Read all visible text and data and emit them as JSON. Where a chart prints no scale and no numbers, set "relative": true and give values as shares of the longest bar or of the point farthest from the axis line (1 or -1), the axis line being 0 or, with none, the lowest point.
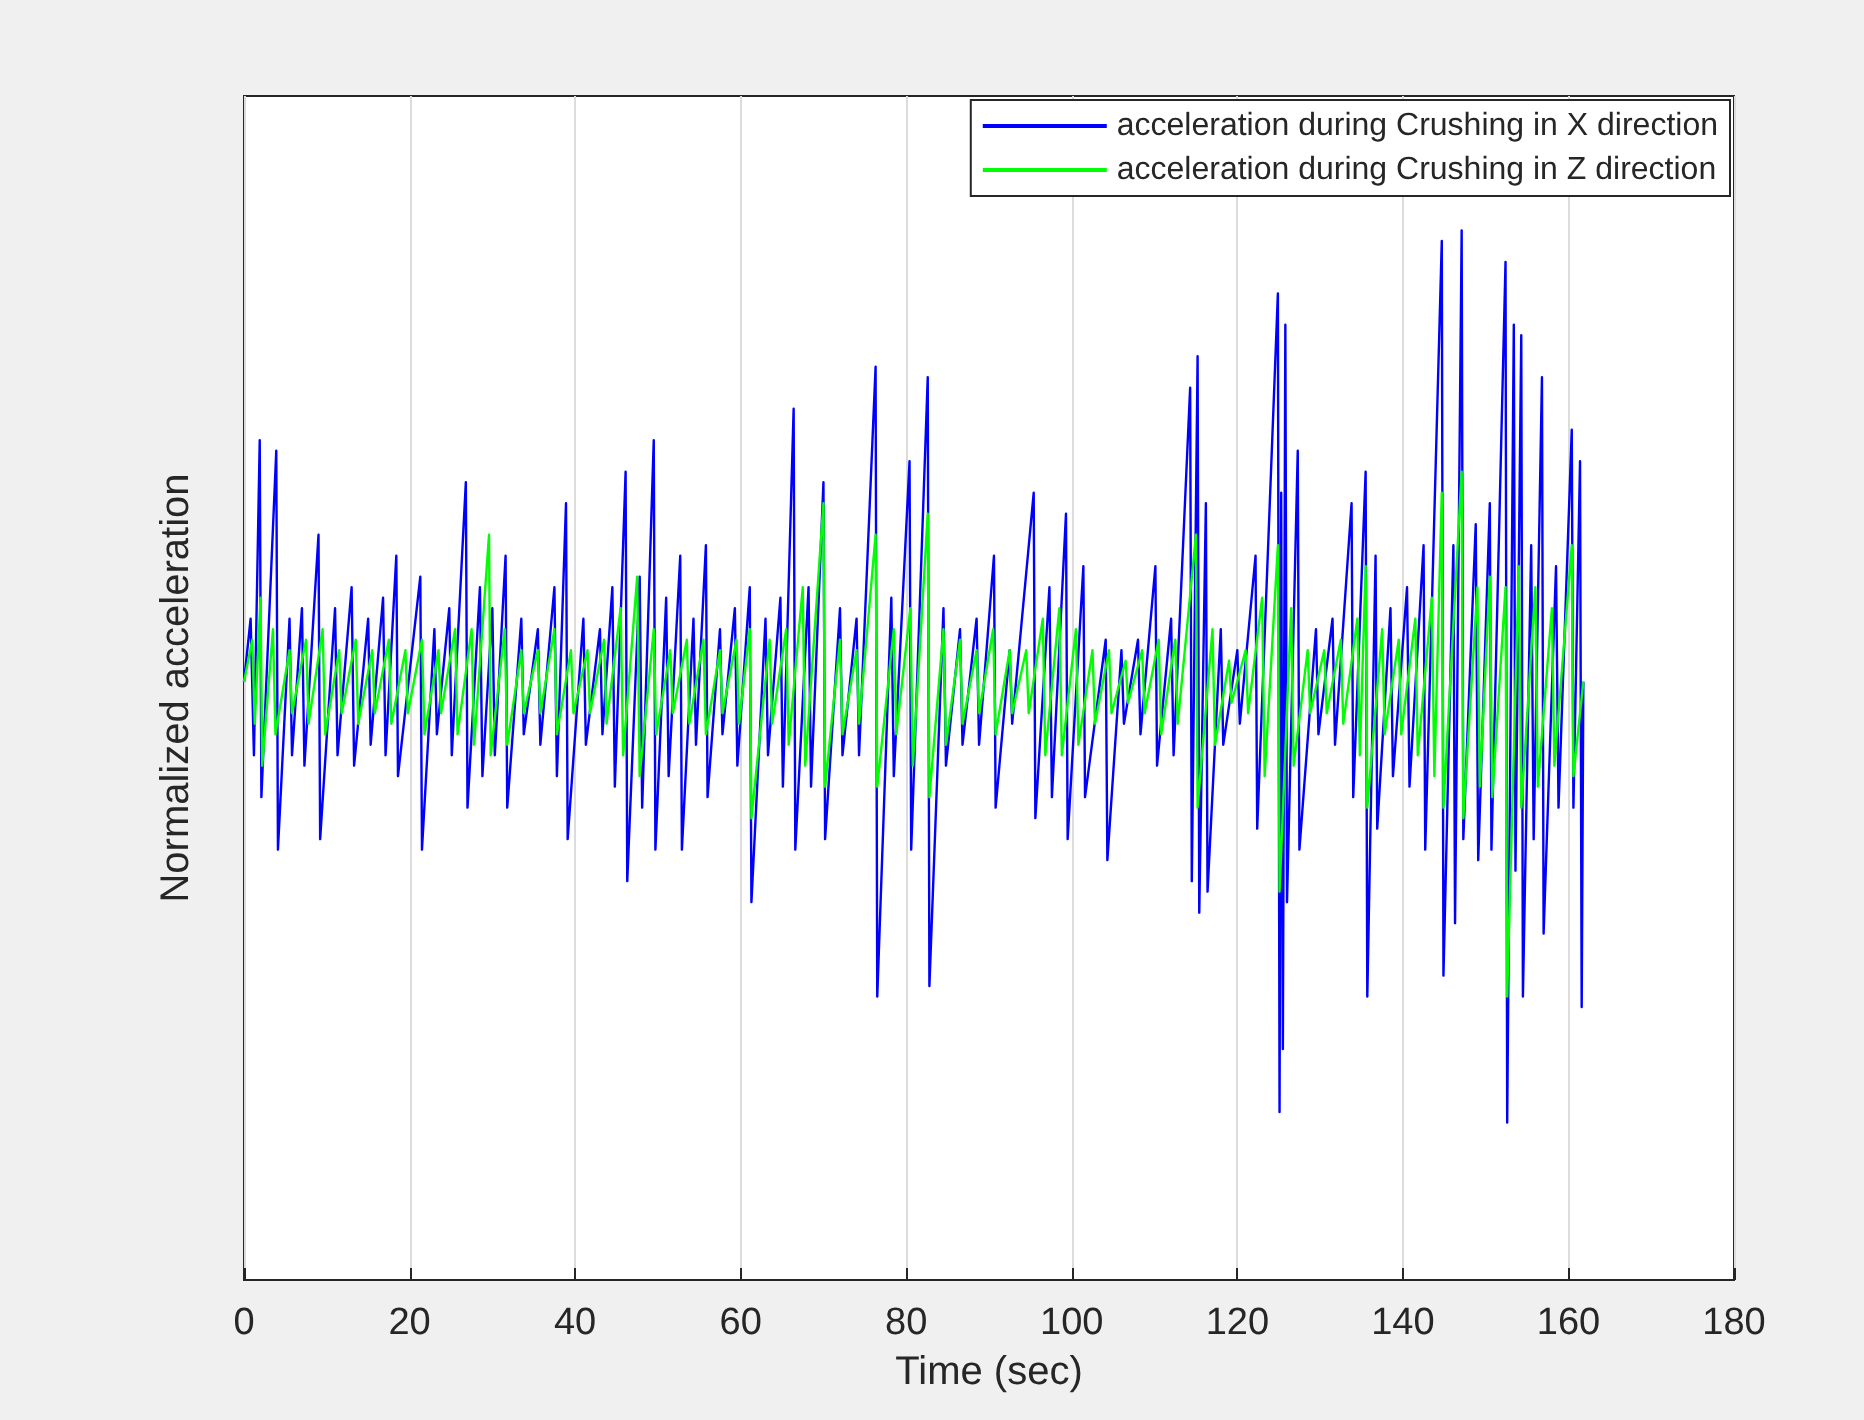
{
  "chart_data": {
    "type": "line",
    "xlabel": "Time (sec)",
    "ylabel": "Normalized acceleration",
    "relative": true,
    "xlim": [
      0,
      180
    ],
    "xticks": [
      0,
      20,
      40,
      60,
      80,
      100,
      120,
      140,
      160,
      180
    ],
    "grid": "x",
    "legend": "top right",
    "series": [
      {
        "name": "acceleration during Crushing in X direction",
        "color": "#0000ff",
        "x": [
          0,
          0.8,
          1.2,
          1.9,
          2.1,
          3.9,
          4.1,
          5.5,
          5.8,
          7,
          7.3,
          9,
          9.2,
          11,
          11.3,
          13,
          13.3,
          15,
          15.3,
          16.8,
          17.1,
          18.4,
          18.6,
          21.3,
          21.5,
          23,
          23.3,
          24.8,
          25.1,
          26.8,
          27,
          28.5,
          28.8,
          30,
          30.3,
          31.6,
          31.8,
          33.5,
          33.8,
          35.5,
          35.8,
          37.5,
          37.8,
          38.9,
          39.1,
          41,
          41.3,
          43,
          43.3,
          44.5,
          44.8,
          46.1,
          46.3,
          47.8,
          48.1,
          49.5,
          49.7,
          51,
          51.3,
          52.7,
          52.9,
          54.3,
          54.6,
          55.8,
          56,
          57.5,
          57.8,
          59.3,
          59.6,
          61.1,
          61.3,
          63,
          63.3,
          64.8,
          65.1,
          66.4,
          66.6,
          68.2,
          68.5,
          70,
          70.2,
          72,
          72.3,
          74,
          74.3,
          76.3,
          76.5,
          78.2,
          78.5,
          80.4,
          80.6,
          82.6,
          82.8,
          84.5,
          84.8,
          86.5,
          86.8,
          88.5,
          88.8,
          90.6,
          90.8,
          92.5,
          92.8,
          95.4,
          95.6,
          97.3,
          97.6,
          99.3,
          99.5,
          101.4,
          101.6,
          104.1,
          104.3,
          106,
          106.3,
          108,
          108.3,
          110.1,
          110.3,
          112,
          112.3,
          114.3,
          114.5,
          115.2,
          115.4,
          116.2,
          116.4,
          118,
          118.3,
          120,
          120.3,
          122.2,
          122.4,
          124.9,
          125.1,
          125.3,
          125.5,
          125.8,
          126,
          127.3,
          127.5,
          129.5,
          129.8,
          131.5,
          131.8,
          133.8,
          134,
          135.5,
          135.7,
          136.7,
          136.9,
          138.5,
          138.8,
          140.5,
          140.8,
          142.5,
          142.7,
          144.7,
          144.9,
          146.1,
          146.3,
          147.1,
          147.3,
          148.8,
          149.1,
          150.5,
          150.7,
          152.4,
          152.6,
          153.4,
          153.6,
          154.3,
          154.5,
          155.5,
          155.8,
          156.8,
          157,
          158.5,
          158.8,
          160.4,
          160.6,
          161.4,
          161.6,
          161.8
        ],
        "values": [
          0.57,
          0.63,
          0.5,
          0.8,
          0.46,
          0.79,
          0.41,
          0.63,
          0.5,
          0.64,
          0.49,
          0.71,
          0.42,
          0.64,
          0.5,
          0.66,
          0.49,
          0.63,
          0.51,
          0.65,
          0.5,
          0.69,
          0.48,
          0.67,
          0.41,
          0.62,
          0.52,
          0.64,
          0.5,
          0.76,
          0.45,
          0.66,
          0.48,
          0.64,
          0.5,
          0.69,
          0.45,
          0.63,
          0.52,
          0.62,
          0.51,
          0.66,
          0.48,
          0.74,
          0.42,
          0.63,
          0.51,
          0.62,
          0.52,
          0.66,
          0.47,
          0.77,
          0.38,
          0.67,
          0.45,
          0.8,
          0.41,
          0.65,
          0.48,
          0.69,
          0.41,
          0.63,
          0.51,
          0.7,
          0.46,
          0.62,
          0.52,
          0.64,
          0.49,
          0.66,
          0.36,
          0.63,
          0.5,
          0.65,
          0.47,
          0.83,
          0.41,
          0.66,
          0.47,
          0.76,
          0.42,
          0.64,
          0.5,
          0.63,
          0.5,
          0.87,
          0.27,
          0.65,
          0.48,
          0.78,
          0.41,
          0.86,
          0.28,
          0.64,
          0.49,
          0.62,
          0.51,
          0.63,
          0.51,
          0.69,
          0.45,
          0.6,
          0.53,
          0.75,
          0.44,
          0.66,
          0.46,
          0.73,
          0.42,
          0.68,
          0.46,
          0.61,
          0.4,
          0.6,
          0.53,
          0.61,
          0.52,
          0.68,
          0.49,
          0.63,
          0.5,
          0.85,
          0.38,
          0.88,
          0.35,
          0.74,
          0.37,
          0.62,
          0.51,
          0.6,
          0.53,
          0.69,
          0.43,
          0.94,
          0.16,
          0.75,
          0.22,
          0.91,
          0.36,
          0.79,
          0.41,
          0.62,
          0.52,
          0.63,
          0.51,
          0.74,
          0.46,
          0.77,
          0.27,
          0.69,
          0.43,
          0.64,
          0.48,
          0.66,
          0.47,
          0.7,
          0.41,
          0.99,
          0.29,
          0.7,
          0.34,
          1.0,
          0.42,
          0.72,
          0.4,
          0.74,
          0.41,
          0.97,
          0.15,
          0.91,
          0.39,
          0.9,
          0.27,
          0.7,
          0.42,
          0.86,
          0.33,
          0.68,
          0.45,
          0.81,
          0.45,
          0.78,
          0.26,
          0.57
        ]
      },
      {
        "name": "acceleration during Crushing in Z direction",
        "color": "#00ff00",
        "x": [
          0,
          1,
          1.3,
          2,
          2.2,
          3.5,
          3.8,
          5.5,
          5.8,
          7.5,
          7.8,
          9.5,
          9.8,
          11.5,
          11.8,
          13.5,
          13.8,
          15.5,
          15.8,
          17.5,
          17.8,
          19.5,
          19.8,
          21.5,
          21.8,
          23.5,
          23.8,
          25.5,
          25.8,
          27.5,
          27.8,
          29.6,
          29.8,
          31.5,
          31.8,
          33.5,
          33.8,
          35.5,
          35.8,
          37.5,
          37.8,
          39.5,
          39.8,
          41.5,
          41.8,
          43.5,
          43.8,
          45.5,
          45.8,
          47.5,
          47.8,
          49.5,
          49.8,
          51.5,
          51.8,
          53.5,
          53.8,
          55.5,
          55.8,
          57.5,
          57.8,
          59.5,
          59.8,
          61.1,
          61.3,
          63.5,
          63.8,
          65.5,
          65.8,
          67.5,
          67.8,
          70,
          70.2,
          72,
          72.3,
          74,
          74.3,
          76.3,
          76.5,
          78.5,
          78.8,
          80.5,
          80.8,
          82.6,
          82.8,
          84.5,
          84.8,
          86.5,
          86.8,
          88.5,
          88.8,
          90.5,
          90.8,
          92.5,
          92.8,
          94.5,
          94.8,
          96.5,
          96.8,
          98.5,
          98.8,
          100.5,
          100.8,
          102.5,
          102.8,
          104.5,
          104.8,
          106.5,
          106.8,
          108.5,
          108.8,
          110.5,
          110.8,
          112.5,
          112.8,
          115,
          115.2,
          117,
          117.3,
          119,
          119.3,
          121,
          121.3,
          123,
          123.3,
          124.9,
          125.1,
          126.5,
          126.8,
          128.5,
          128.8,
          130.5,
          130.8,
          132.5,
          132.8,
          134.5,
          134.8,
          135.5,
          135.7,
          137.5,
          137.8,
          139.5,
          139.8,
          141.5,
          141.8,
          143.5,
          143.8,
          144.7,
          144.9,
          147.1,
          147.3,
          149,
          149.3,
          150.5,
          150.8,
          152.4,
          152.6,
          154,
          154.3,
          156,
          156.3,
          158,
          158.3,
          160.4,
          160.6,
          161.8
        ],
        "values": [
          0.57,
          0.61,
          0.53,
          0.65,
          0.49,
          0.62,
          0.52,
          0.6,
          0.54,
          0.61,
          0.53,
          0.62,
          0.52,
          0.6,
          0.54,
          0.61,
          0.53,
          0.6,
          0.54,
          0.61,
          0.53,
          0.6,
          0.54,
          0.61,
          0.52,
          0.6,
          0.54,
          0.62,
          0.52,
          0.62,
          0.51,
          0.71,
          0.5,
          0.62,
          0.51,
          0.6,
          0.54,
          0.6,
          0.54,
          0.62,
          0.52,
          0.6,
          0.54,
          0.6,
          0.54,
          0.61,
          0.53,
          0.64,
          0.5,
          0.67,
          0.48,
          0.62,
          0.52,
          0.6,
          0.54,
          0.61,
          0.53,
          0.61,
          0.52,
          0.6,
          0.54,
          0.61,
          0.53,
          0.62,
          0.44,
          0.61,
          0.53,
          0.62,
          0.51,
          0.66,
          0.49,
          0.74,
          0.47,
          0.61,
          0.52,
          0.6,
          0.53,
          0.71,
          0.47,
          0.62,
          0.52,
          0.64,
          0.49,
          0.73,
          0.46,
          0.62,
          0.51,
          0.61,
          0.53,
          0.6,
          0.54,
          0.62,
          0.52,
          0.6,
          0.54,
          0.6,
          0.54,
          0.63,
          0.5,
          0.64,
          0.5,
          0.62,
          0.51,
          0.6,
          0.53,
          0.6,
          0.54,
          0.59,
          0.55,
          0.6,
          0.54,
          0.61,
          0.52,
          0.61,
          0.53,
          0.71,
          0.45,
          0.62,
          0.51,
          0.59,
          0.55,
          0.6,
          0.54,
          0.65,
          0.48,
          0.7,
          0.37,
          0.64,
          0.49,
          0.6,
          0.54,
          0.6,
          0.54,
          0.61,
          0.53,
          0.63,
          0.5,
          0.68,
          0.45,
          0.62,
          0.52,
          0.61,
          0.52,
          0.63,
          0.5,
          0.65,
          0.48,
          0.75,
          0.45,
          0.77,
          0.44,
          0.66,
          0.47,
          0.67,
          0.46,
          0.66,
          0.27,
          0.68,
          0.45,
          0.66,
          0.47,
          0.64,
          0.49,
          0.7,
          0.48,
          0.57
        ]
      }
    ]
  }
}
